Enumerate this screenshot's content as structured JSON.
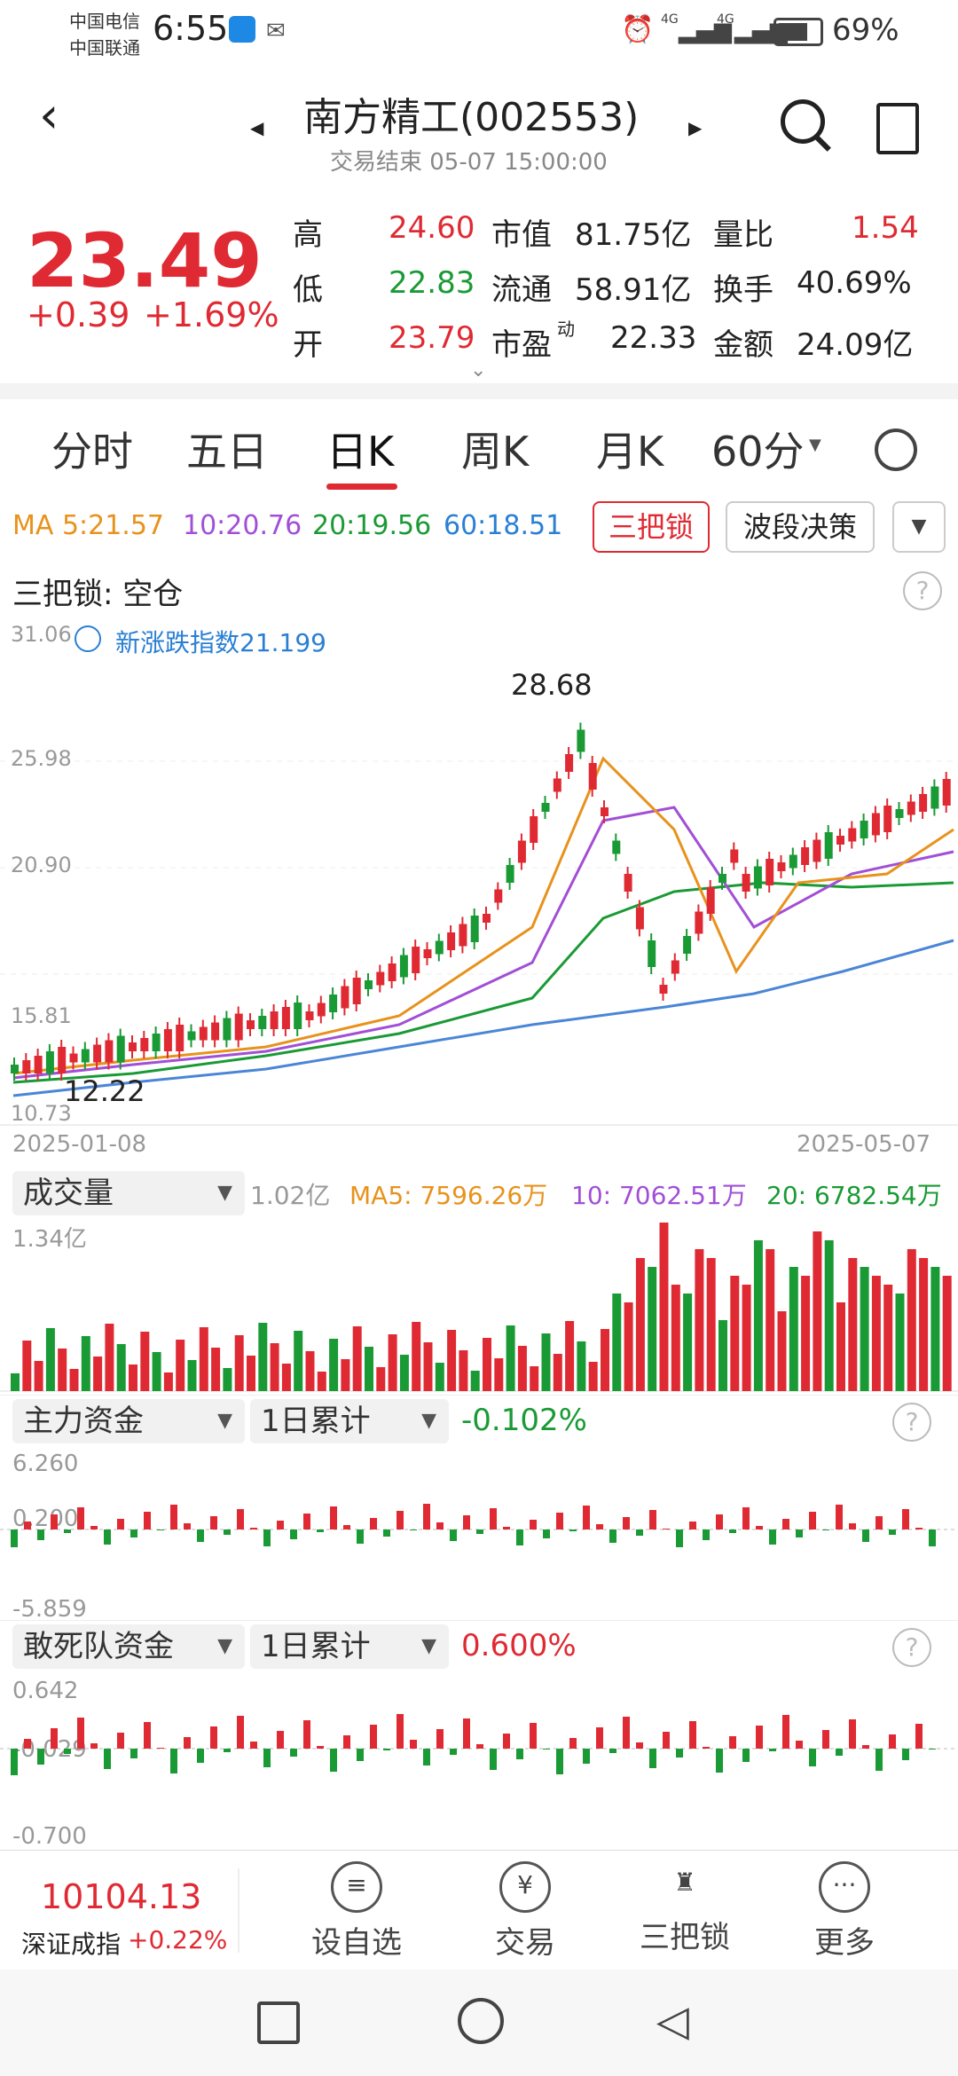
{
  "status_bar": {
    "carrier1": "中国电信",
    "carrier2": "中国联通",
    "time": "6:55",
    "battery": "69%",
    "signal1": "4G",
    "signal2": "4G"
  },
  "header": {
    "title": "南方精工(002553)",
    "subtitle": "交易结束 05-07 15:00:00"
  },
  "quote": {
    "price": "23.49",
    "change": "+0.39",
    "change_pct": "+1.69%",
    "rows": [
      {
        "l1": "高",
        "v1": "24.60",
        "l2": "市值",
        "v2": "81.75亿",
        "l3": "量比",
        "v3": "1.54"
      },
      {
        "l1": "低",
        "v1": "22.83",
        "l2": "流通",
        "v2": "58.91亿",
        "l3": "换手",
        "v3": "40.69%"
      },
      {
        "l1": "开",
        "v1": "23.79",
        "l2": "市盈",
        "l2sup": "动",
        "v2": "22.33",
        "l3": "金额",
        "v3": "24.09亿"
      }
    ]
  },
  "tabs": [
    "分时",
    "五日",
    "日K",
    "周K",
    "月K",
    "60分"
  ],
  "ma": {
    "ma5": "MA 5:21.57",
    "ma10": "10:20.76",
    "ma20": "20:19.56",
    "ma60": "60:18.51",
    "btn_lock": "三把锁",
    "btn_wave": "波段决策"
  },
  "lock_status": "三把锁: 空仓",
  "price_chart": {
    "legend": "新涨跌指数21.199",
    "y_labels": [
      "31.06",
      "25.98",
      "20.90",
      "15.81",
      "10.73"
    ],
    "high_label": "28.68",
    "low_label": "12.22",
    "date_start": "2025-01-08",
    "date_end": "2025-05-07"
  },
  "volume": {
    "selector": "成交量",
    "value": "1.02亿",
    "ma5": "MA5: 7596.26万",
    "ma10": "10: 7062.51万",
    "ma20": "20: 6782.54万",
    "y_top": "1.34亿"
  },
  "main_fund": {
    "selector": "主力资金",
    "period": "1日累计",
    "value": "-0.102%",
    "y_top": "6.260",
    "y_mid": "0.200",
    "y_bottom": "-5.859"
  },
  "dare_fund": {
    "selector": "敢死队资金",
    "period": "1日累计",
    "value": "0.600%",
    "y_top": "0.642",
    "y_mid": "-0.029",
    "y_bottom": "-0.700"
  },
  "bottom": {
    "index_value": "10104.13",
    "index_name": "深证成指",
    "index_change": "+0.22%",
    "actions": [
      "设自选",
      "交易",
      "三把锁",
      "更多"
    ]
  }
}
